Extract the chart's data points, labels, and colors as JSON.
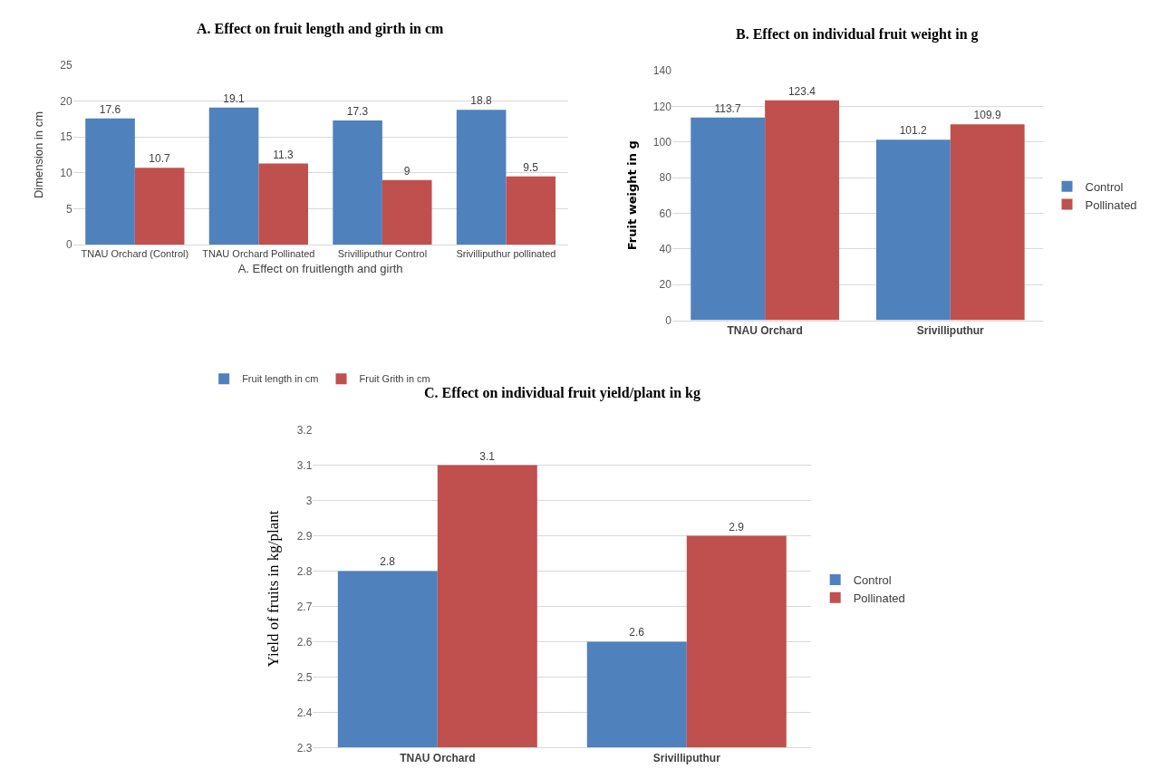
{
  "chart_data": [
    {
      "type": "bar",
      "title": "A. Effect on fruit length and girth in cm",
      "xlabel": "A. Effect on fruitlength and girth",
      "ylabel": "Dimension in cm",
      "categories": [
        "TNAU Orchard (Control)",
        "TNAU Orchard Pollinated",
        "Srivilliputhur Control",
        "Srivilliputhur pollinated"
      ],
      "series": [
        {
          "name": "Fruit length in cm",
          "color": "#4f81bd",
          "values": [
            17.6,
            19.1,
            17.3,
            18.8
          ]
        },
        {
          "name": "Fruit Grith in cm",
          "color": "#c0504d",
          "values": [
            10.7,
            11.3,
            9,
            9.5
          ]
        }
      ],
      "ylim": [
        0,
        25
      ],
      "yticks": [
        0,
        5,
        10,
        15,
        20,
        25
      ],
      "grid": "y",
      "legend": "bottom",
      "data_labels": true
    },
    {
      "type": "bar",
      "title": "B. Effect on individual fruit weight in g",
      "ylabel": "Fruit weight in g",
      "categories": [
        "TNAU Orchard",
        "Srivilliputhur"
      ],
      "series": [
        {
          "name": "Control",
          "color": "#4f81bd",
          "values": [
            113.7,
            101.2
          ]
        },
        {
          "name": "Pollinated",
          "color": "#c0504d",
          "values": [
            123.4,
            109.9
          ]
        }
      ],
      "ylim": [
        0,
        140
      ],
      "yticks": [
        0,
        20,
        40,
        60,
        80,
        100,
        120,
        140
      ],
      "grid": "y",
      "legend": "right",
      "data_labels": true
    },
    {
      "type": "bar",
      "title": "C. Effect on individual fruit yield/plant in kg",
      "ylabel": "Yield of fruits in kg/plant",
      "categories": [
        "TNAU Orchard",
        "Srivilliputhur"
      ],
      "series": [
        {
          "name": "Control",
          "color": "#4f81bd",
          "values": [
            2.8,
            2.6
          ]
        },
        {
          "name": "Pollinated",
          "color": "#c0504d",
          "values": [
            3.1,
            2.9
          ]
        }
      ],
      "ylim": [
        2.3,
        3.2
      ],
      "yticks": [
        2.3,
        2.4,
        2.5,
        2.6,
        2.7,
        2.8,
        2.9,
        3,
        3.1,
        3.2
      ],
      "grid": "y",
      "legend": "right",
      "data_labels": true
    }
  ]
}
